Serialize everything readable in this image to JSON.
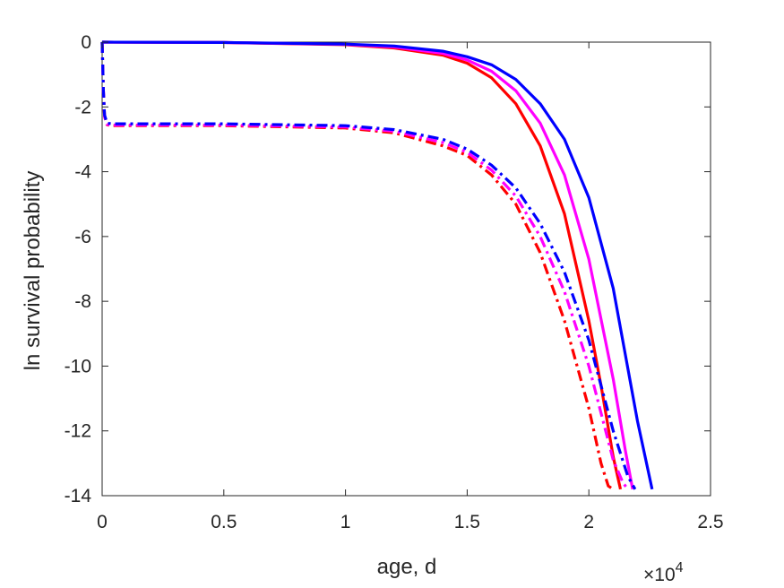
{
  "chart_data": {
    "type": "line",
    "title": "",
    "xlabel": "age, d",
    "ylabel": "ln survival probability",
    "x_exponent_label": "×10",
    "x_exponent_power": "4",
    "xlim": [
      0,
      2.5
    ],
    "ylim": [
      -14,
      0
    ],
    "x_ticks": [
      0,
      0.5,
      1,
      1.5,
      2,
      2.5
    ],
    "x_tick_labels": [
      "0",
      "0.5",
      "1",
      "1.5",
      "2",
      "2.5"
    ],
    "y_ticks": [
      0,
      -2,
      -4,
      -6,
      -8,
      -10,
      -12,
      -14
    ],
    "y_tick_labels": [
      "0",
      "-2",
      "-4",
      "-6",
      "-8",
      "-10",
      "-12",
      "-14"
    ],
    "grid": false,
    "legend": "none",
    "x_unit_note": "x values in units of 10^4 d",
    "series": [
      {
        "color": "#ff0000",
        "style": "solid",
        "x": [
          0,
          0.5,
          1.0,
          1.2,
          1.4,
          1.5,
          1.6,
          1.7,
          1.8,
          1.9,
          2.0,
          2.05,
          2.1,
          2.13
        ],
        "y": [
          0,
          -0.01,
          -0.08,
          -0.18,
          -0.4,
          -0.65,
          -1.1,
          -1.9,
          -3.2,
          -5.3,
          -8.6,
          -10.6,
          -12.8,
          -13.8
        ]
      },
      {
        "color": "#ff00ff",
        "style": "solid",
        "x": [
          0,
          0.5,
          1.0,
          1.2,
          1.4,
          1.5,
          1.6,
          1.7,
          1.8,
          1.9,
          2.0,
          2.1,
          2.15,
          2.18
        ],
        "y": [
          0,
          -0.01,
          -0.07,
          -0.15,
          -0.35,
          -0.55,
          -0.9,
          -1.5,
          -2.5,
          -4.1,
          -6.7,
          -10.4,
          -12.6,
          -13.8
        ]
      },
      {
        "color": "#0000ff",
        "style": "solid",
        "x": [
          0,
          0.5,
          1.0,
          1.2,
          1.4,
          1.5,
          1.6,
          1.7,
          1.8,
          1.9,
          2.0,
          2.1,
          2.2,
          2.26
        ],
        "y": [
          0,
          -0.01,
          -0.06,
          -0.12,
          -0.28,
          -0.45,
          -0.7,
          -1.15,
          -1.9,
          -3.0,
          -4.8,
          -7.6,
          -11.7,
          -13.8
        ]
      },
      {
        "color": "#ff0000",
        "style": "dashdot",
        "x": [
          0,
          0.005,
          0.01,
          0.02,
          0.04,
          0.5,
          1.0,
          1.2,
          1.4,
          1.5,
          1.6,
          1.7,
          1.8,
          1.9,
          2.0,
          2.05,
          2.08,
          2.1
        ],
        "y": [
          0,
          -1.5,
          -2.3,
          -2.55,
          -2.58,
          -2.58,
          -2.65,
          -2.8,
          -3.2,
          -3.5,
          -4.1,
          -5.0,
          -6.5,
          -8.6,
          -11.3,
          -13.0,
          -13.7,
          -13.8
        ]
      },
      {
        "color": "#ff00ff",
        "style": "dashdot",
        "x": [
          0,
          0.005,
          0.01,
          0.02,
          0.04,
          0.5,
          1.0,
          1.2,
          1.4,
          1.5,
          1.6,
          1.7,
          1.8,
          1.9,
          2.0,
          2.1,
          2.14,
          2.16
        ],
        "y": [
          0,
          -1.5,
          -2.3,
          -2.54,
          -2.56,
          -2.56,
          -2.62,
          -2.75,
          -3.1,
          -3.4,
          -3.95,
          -4.75,
          -6.0,
          -7.7,
          -10.0,
          -12.9,
          -13.6,
          -13.8
        ]
      },
      {
        "color": "#0000ff",
        "style": "dashdot",
        "x": [
          0,
          0.005,
          0.01,
          0.02,
          0.04,
          0.5,
          1.0,
          1.2,
          1.4,
          1.5,
          1.6,
          1.7,
          1.8,
          1.9,
          2.0,
          2.1,
          2.16,
          2.19
        ],
        "y": [
          0,
          -1.5,
          -2.25,
          -2.5,
          -2.52,
          -2.52,
          -2.58,
          -2.7,
          -3.0,
          -3.3,
          -3.8,
          -4.5,
          -5.6,
          -7.1,
          -9.2,
          -12.0,
          -13.4,
          -13.8
        ]
      }
    ]
  }
}
